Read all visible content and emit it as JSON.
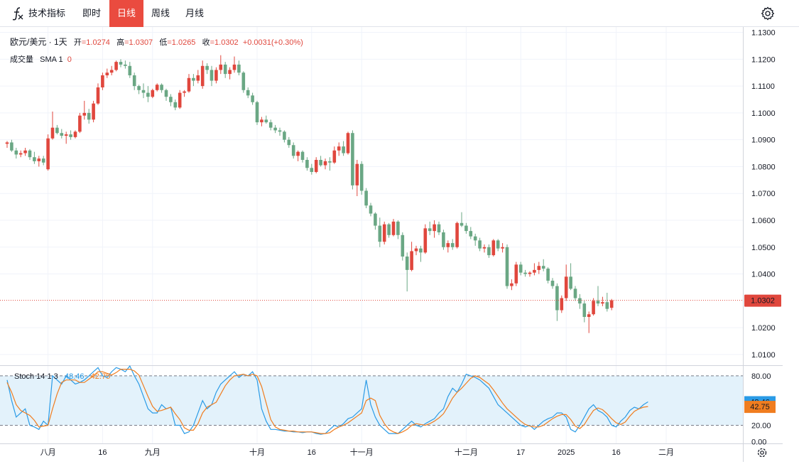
{
  "toolbar": {
    "indicators_label": "技术指标",
    "intervals": [
      {
        "label": "即时",
        "active": false
      },
      {
        "label": "日线",
        "active": true
      },
      {
        "label": "周线",
        "active": false
      },
      {
        "label": "月线",
        "active": false
      }
    ]
  },
  "legend": {
    "symbol": "欧元/美元 · 1天",
    "open_label": "开",
    "open": "=1.0274",
    "high_label": "高",
    "high": "=1.0307",
    "low_label": "低",
    "low": "=1.0265",
    "close_label": "收",
    "close": "=1.0302",
    "change": "+0.0031(+0.30%)",
    "volume_label": "成交量",
    "sma_label": "SMA 1",
    "sma_value": "0"
  },
  "stoch_legend": {
    "label": "Stoch 14 1 3",
    "k": "48.46",
    "d": "42.75"
  },
  "colors": {
    "up": "#e0473d",
    "down": "#6aa784",
    "k_line": "#2a9be6",
    "d_line": "#f07d1f",
    "band": "#e3f2fb",
    "price_badge": "#e0473d",
    "k_badge": "#2a9be6",
    "d_badge": "#f07d1f"
  },
  "chart_data": [
    {
      "type": "candlestick",
      "title": "欧元/美元 · 1天",
      "ylim": [
        1.006,
        1.132
      ],
      "y_ticks": [
        "1.1300",
        "1.1200",
        "1.1100",
        "1.1000",
        "1.0900",
        "1.0800",
        "1.0700",
        "1.0600",
        "1.0500",
        "1.0400",
        "1.0200",
        "1.0100"
      ],
      "y_tick_values": [
        1.13,
        1.12,
        1.11,
        1.1,
        1.09,
        1.08,
        1.07,
        1.06,
        1.05,
        1.04,
        1.02,
        1.01
      ],
      "last_price": 1.0302,
      "last_price_label": "1.0302",
      "x_labels": [
        {
          "label": "八月",
          "index": 9
        },
        {
          "label": "16",
          "index": 21
        },
        {
          "label": "九月",
          "index": 32
        },
        {
          "label": "十月",
          "index": 55
        },
        {
          "label": "16",
          "index": 67
        },
        {
          "label": "十一月",
          "index": 78
        },
        {
          "label": "十二月",
          "index": 101
        },
        {
          "label": "17",
          "index": 113
        },
        {
          "label": "2025",
          "index": 123
        },
        {
          "label": "16",
          "index": 134
        },
        {
          "label": "二月",
          "index": 145
        }
      ],
      "candles": [
        [
          1.0885,
          1.0895,
          1.087,
          1.089
        ],
        [
          1.089,
          1.09,
          1.0855,
          1.086
        ],
        [
          1.086,
          1.087,
          1.083,
          1.0845
        ],
        [
          1.0845,
          1.086,
          1.0835,
          1.085
        ],
        [
          1.085,
          1.087,
          1.084,
          1.086
        ],
        [
          1.086,
          1.0865,
          1.0825,
          1.0835
        ],
        [
          1.0835,
          1.0855,
          1.081,
          1.082
        ],
        [
          1.082,
          1.084,
          1.08,
          1.083
        ],
        [
          1.083,
          1.084,
          1.0805,
          1.0815
        ],
        [
          1.079,
          1.092,
          1.0785,
          1.0905
        ],
        [
          1.0905,
          1.1005,
          1.09,
          1.0945
        ],
        [
          1.0945,
          1.0955,
          1.092,
          1.0925
        ],
        [
          1.0925,
          1.094,
          1.0905,
          1.0915
        ],
        [
          1.0915,
          1.093,
          1.0885,
          1.092
        ],
        [
          1.092,
          1.0935,
          1.09,
          1.091
        ],
        [
          1.091,
          1.0935,
          1.0905,
          1.093
        ],
        [
          1.093,
          1.1,
          1.0925,
          1.099
        ],
        [
          1.099,
          1.1045,
          1.0975,
          1.1
        ],
        [
          1.1,
          1.1015,
          1.096,
          1.0975
        ],
        [
          1.0975,
          1.1045,
          1.0965,
          1.1035
        ],
        [
          1.1035,
          1.111,
          1.103,
          1.1095
        ],
        [
          1.1095,
          1.115,
          1.1085,
          1.114
        ],
        [
          1.114,
          1.1165,
          1.113,
          1.115
        ],
        [
          1.115,
          1.1175,
          1.114,
          1.116
        ],
        [
          1.116,
          1.1195,
          1.1155,
          1.119
        ],
        [
          1.119,
          1.12,
          1.117,
          1.118
        ],
        [
          1.118,
          1.1195,
          1.1165,
          1.1175
        ],
        [
          1.1175,
          1.119,
          1.113,
          1.114
        ],
        [
          1.114,
          1.115,
          1.1085,
          1.11
        ],
        [
          1.11,
          1.1105,
          1.107,
          1.1085
        ],
        [
          1.1085,
          1.111,
          1.1055,
          1.1075
        ],
        [
          1.1075,
          1.11,
          1.104,
          1.106
        ],
        [
          1.106,
          1.109,
          1.1055,
          1.1085
        ],
        [
          1.1085,
          1.111,
          1.108,
          1.1105
        ],
        [
          1.1105,
          1.111,
          1.1075,
          1.1085
        ],
        [
          1.1085,
          1.109,
          1.1045,
          1.106
        ],
        [
          1.106,
          1.107,
          1.1025,
          1.104
        ],
        [
          1.104,
          1.105,
          1.101,
          1.102
        ],
        [
          1.102,
          1.1085,
          1.1015,
          1.1075
        ],
        [
          1.1075,
          1.1085,
          1.106,
          1.108
        ],
        [
          1.108,
          1.1145,
          1.1075,
          1.113
        ],
        [
          1.113,
          1.1145,
          1.11,
          1.112
        ],
        [
          1.112,
          1.116,
          1.111,
          1.114
        ],
        [
          1.11,
          1.1195,
          1.109,
          1.1175
        ],
        [
          1.1175,
          1.1185,
          1.1145,
          1.116
        ],
        [
          1.116,
          1.1175,
          1.11,
          1.112
        ],
        [
          1.112,
          1.117,
          1.111,
          1.116
        ],
        [
          1.116,
          1.1215,
          1.1145,
          1.118
        ],
        [
          1.118,
          1.119,
          1.113,
          1.1145
        ],
        [
          1.1145,
          1.117,
          1.1125,
          1.116
        ],
        [
          1.116,
          1.121,
          1.115,
          1.118
        ],
        [
          1.118,
          1.1195,
          1.114,
          1.115
        ],
        [
          1.115,
          1.1155,
          1.1075,
          1.1085
        ],
        [
          1.1085,
          1.1095,
          1.1055,
          1.1065
        ],
        [
          1.1065,
          1.1075,
          1.103,
          1.104
        ],
        [
          1.104,
          1.1045,
          1.0955,
          1.0965
        ],
        [
          1.0965,
          1.0985,
          1.095,
          1.0975
        ],
        [
          1.0975,
          1.099,
          1.096,
          1.0965
        ],
        [
          1.0965,
          1.0975,
          1.0935,
          1.0945
        ],
        [
          1.0945,
          1.0955,
          1.0925,
          1.0935
        ],
        [
          1.0935,
          1.0945,
          1.0915,
          1.093
        ],
        [
          1.093,
          1.0935,
          1.089,
          1.09
        ],
        [
          1.09,
          1.091,
          1.087,
          1.088
        ],
        [
          1.088,
          1.089,
          1.083,
          1.084
        ],
        [
          1.084,
          1.086,
          1.082,
          1.0855
        ],
        [
          1.0855,
          1.086,
          1.0815,
          1.0825
        ],
        [
          1.0825,
          1.0835,
          1.0785,
          1.0795
        ],
        [
          1.0795,
          1.081,
          1.077,
          1.078
        ],
        [
          1.078,
          1.0835,
          1.0775,
          1.0825
        ],
        [
          1.0825,
          1.084,
          1.08,
          1.0805
        ],
        [
          1.0805,
          1.083,
          1.079,
          1.082
        ],
        [
          1.082,
          1.0835,
          1.0785,
          1.0815
        ],
        [
          1.0815,
          1.0875,
          1.081,
          1.086
        ],
        [
          1.086,
          1.089,
          1.084,
          1.0875
        ],
        [
          1.0875,
          1.0895,
          1.084,
          1.085
        ],
        [
          1.085,
          1.093,
          1.0845,
          1.0925
        ],
        [
          1.0925,
          1.0935,
          1.0715,
          1.073
        ],
        [
          1.073,
          1.0825,
          1.069,
          1.081
        ],
        [
          1.081,
          1.082,
          1.0695,
          1.071
        ],
        [
          1.071,
          1.072,
          1.0645,
          1.0655
        ],
        [
          1.0655,
          1.0665,
          1.0615,
          1.0625
        ],
        [
          1.0625,
          1.063,
          1.0565,
          1.058
        ],
        [
          1.058,
          1.061,
          1.05,
          1.052
        ],
        [
          1.052,
          1.0595,
          1.051,
          1.0585
        ],
        [
          1.0585,
          1.059,
          1.0535,
          1.0545
        ],
        [
          1.0545,
          1.0605,
          1.054,
          1.0595
        ],
        [
          1.0595,
          1.06,
          1.053,
          1.0545
        ],
        [
          1.0545,
          1.0555,
          1.045,
          1.0465
        ],
        [
          1.0465,
          1.048,
          1.0335,
          1.0415
        ],
        [
          1.0415,
          1.052,
          1.041,
          1.0485
        ],
        [
          1.0485,
          1.0505,
          1.047,
          1.0495
        ],
        [
          1.0495,
          1.0505,
          1.0445,
          1.048
        ],
        [
          1.048,
          1.0585,
          1.0475,
          1.057
        ],
        [
          1.057,
          1.0595,
          1.0545,
          1.056
        ],
        [
          1.056,
          1.06,
          1.0535,
          1.0585
        ],
        [
          1.0585,
          1.0595,
          1.0545,
          1.0555
        ],
        [
          1.0555,
          1.0565,
          1.049,
          1.05
        ],
        [
          1.05,
          1.0525,
          1.048,
          1.0515
        ],
        [
          1.0515,
          1.053,
          1.049,
          1.05
        ],
        [
          1.05,
          1.0595,
          1.0495,
          1.059
        ],
        [
          1.059,
          1.063,
          1.0575,
          1.058
        ],
        [
          1.058,
          1.059,
          1.055,
          1.056
        ],
        [
          1.056,
          1.0575,
          1.053,
          1.054
        ],
        [
          1.054,
          1.055,
          1.0505,
          1.0525
        ],
        [
          1.0525,
          1.0535,
          1.0485,
          1.0495
        ],
        [
          1.0495,
          1.051,
          1.048,
          1.05
        ],
        [
          1.05,
          1.051,
          1.046,
          1.047
        ],
        [
          1.047,
          1.053,
          1.0465,
          1.0525
        ],
        [
          1.0525,
          1.053,
          1.0485,
          1.0495
        ],
        [
          1.0495,
          1.0515,
          1.048,
          1.05
        ],
        [
          1.05,
          1.051,
          1.0345,
          1.0355
        ],
        [
          1.0355,
          1.038,
          1.034,
          1.0365
        ],
        [
          1.0365,
          1.0445,
          1.0355,
          1.0435
        ],
        [
          1.0435,
          1.0445,
          1.0395,
          1.0405
        ],
        [
          1.0405,
          1.0415,
          1.039,
          1.04
        ],
        [
          1.04,
          1.041,
          1.039,
          1.0405
        ],
        [
          1.0405,
          1.044,
          1.0395,
          1.0415
        ],
        [
          1.0415,
          1.0445,
          1.04,
          1.043
        ],
        [
          1.043,
          1.0455,
          1.041,
          1.042
        ],
        [
          1.042,
          1.0425,
          1.0365,
          1.0375
        ],
        [
          1.0375,
          1.0385,
          1.0345,
          1.0355
        ],
        [
          1.0355,
          1.0365,
          1.0225,
          1.0265
        ],
        [
          1.0265,
          1.032,
          1.0255,
          1.031
        ],
        [
          1.031,
          1.0435,
          1.03,
          1.039
        ],
        [
          1.039,
          1.044,
          1.034,
          1.0345
        ],
        [
          1.0345,
          1.0355,
          1.03,
          1.031
        ],
        [
          1.031,
          1.0325,
          1.027,
          1.029
        ],
        [
          1.029,
          1.03,
          1.022,
          1.024
        ],
        [
          1.024,
          1.026,
          1.018,
          1.025
        ],
        [
          1.025,
          1.031,
          1.0245,
          1.03
        ],
        [
          1.03,
          1.0355,
          1.028,
          1.029
        ],
        [
          1.029,
          1.0315,
          1.028,
          1.0295
        ],
        [
          1.0295,
          1.033,
          1.026,
          1.027
        ],
        [
          1.0274,
          1.0307,
          1.0265,
          1.0302
        ]
      ]
    },
    {
      "type": "line",
      "title": "Stoch 14 1 3",
      "ylim": [
        -2,
        92
      ],
      "y_ticks": [
        "80.00",
        "20.00",
        "0.00"
      ],
      "y_tick_values": [
        80,
        20,
        0
      ],
      "band": [
        20,
        80
      ],
      "series": [
        {
          "name": "%K",
          "last": 48.46,
          "values": [
            75,
            50,
            30,
            35,
            40,
            20,
            18,
            15,
            25,
            20,
            80,
            75,
            70,
            80,
            75,
            70,
            72,
            75,
            80,
            85,
            90,
            80,
            78,
            85,
            90,
            88,
            85,
            92,
            80,
            70,
            55,
            40,
            35,
            35,
            45,
            40,
            42,
            20,
            20,
            10,
            12,
            20,
            35,
            50,
            40,
            45,
            60,
            70,
            75,
            80,
            85,
            78,
            82,
            80,
            85,
            75,
            40,
            25,
            15,
            15,
            14,
            13,
            13,
            12,
            12,
            11,
            12,
            12,
            10,
            9,
            10,
            15,
            20,
            18,
            22,
            28,
            30,
            35,
            40,
            75,
            45,
            30,
            20,
            15,
            10,
            10,
            10,
            15,
            20,
            25,
            20,
            18,
            22,
            25,
            28,
            35,
            40,
            55,
            65,
            60,
            70,
            82,
            80,
            78,
            75,
            70,
            65,
            55,
            45,
            40,
            35,
            30,
            25,
            20,
            18,
            20,
            15,
            20,
            25,
            28,
            30,
            35,
            35,
            30,
            15,
            12,
            20,
            30,
            40,
            45,
            38,
            35,
            30,
            20,
            18,
            25,
            30,
            38,
            42,
            40,
            45,
            48.46
          ]
        },
        {
          "name": "%D",
          "last": 42.75,
          "values": [
            72,
            60,
            45,
            38,
            35,
            32,
            26,
            18,
            19,
            20,
            40,
            58,
            72,
            75,
            75,
            75,
            72,
            72,
            76,
            80,
            85,
            85,
            83,
            81,
            84,
            88,
            88,
            88,
            86,
            81,
            68,
            55,
            43,
            37,
            38,
            40,
            42,
            34,
            27,
            17,
            14,
            14,
            22,
            35,
            42,
            45,
            48,
            58,
            68,
            75,
            80,
            81,
            82,
            80,
            82,
            80,
            67,
            47,
            27,
            18,
            15,
            14,
            13,
            13,
            12,
            12,
            12,
            12,
            11,
            10,
            10,
            11,
            15,
            18,
            20,
            23,
            27,
            31,
            35,
            50,
            53,
            50,
            32,
            22,
            15,
            12,
            10,
            12,
            15,
            20,
            22,
            21,
            20,
            22,
            25,
            29,
            34,
            43,
            53,
            60,
            65,
            71,
            77,
            80,
            78,
            74,
            70,
            63,
            55,
            47,
            40,
            35,
            30,
            25,
            21,
            19,
            18,
            18,
            20,
            24,
            28,
            31,
            33,
            33,
            27,
            19,
            16,
            21,
            30,
            38,
            41,
            39,
            34,
            28,
            23,
            21,
            24,
            31,
            37,
            40,
            42,
            42.75
          ]
        }
      ],
      "k_label": "48.46",
      "d_label": "42.75"
    }
  ]
}
